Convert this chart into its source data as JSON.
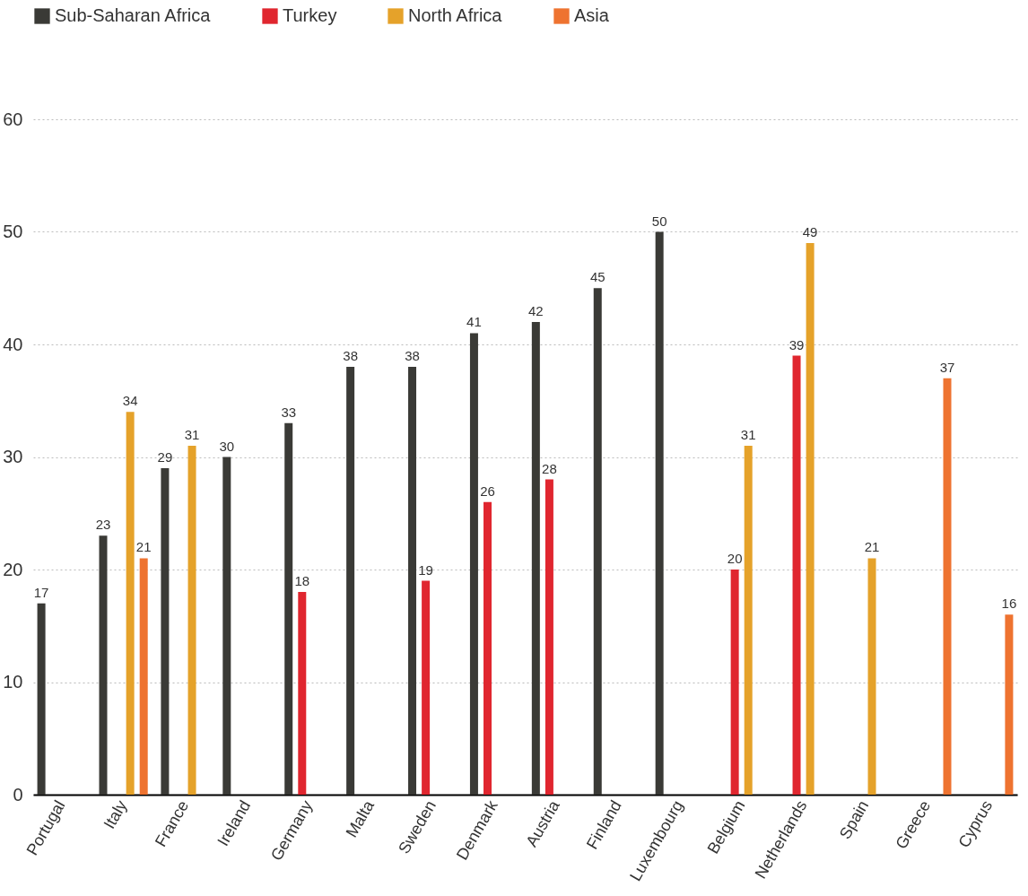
{
  "chart_data": {
    "type": "bar",
    "categories": [
      "Portugal",
      "Italy",
      "France",
      "Ireland",
      "Germany",
      "Malta",
      "Sweden",
      "Denmark",
      "Austria",
      "Finland",
      "Luxembourg",
      "Belgium",
      "Netherlands",
      "Spain",
      "Greece",
      "Cyprus"
    ],
    "series": [
      {
        "name": "Sub-Saharan Africa",
        "color": "#3a3a36",
        "values": [
          17,
          23,
          29,
          30,
          33,
          38,
          38,
          41,
          42,
          45,
          50,
          null,
          null,
          null,
          null,
          null
        ]
      },
      {
        "name": "Turkey",
        "color": "#e0262f",
        "values": [
          null,
          null,
          null,
          null,
          18,
          null,
          19,
          26,
          28,
          null,
          null,
          20,
          39,
          null,
          null,
          null
        ]
      },
      {
        "name": "North Africa",
        "color": "#e5a22a",
        "values": [
          null,
          34,
          31,
          null,
          null,
          null,
          null,
          null,
          null,
          null,
          null,
          31,
          49,
          21,
          null,
          null
        ]
      },
      {
        "name": "Asia",
        "color": "#ee7330",
        "values": [
          null,
          21,
          null,
          null,
          null,
          null,
          null,
          null,
          null,
          null,
          null,
          null,
          null,
          null,
          37,
          16
        ]
      }
    ],
    "ylim": [
      0,
      60
    ],
    "yticks": [
      0,
      10,
      20,
      30,
      40,
      50,
      60
    ],
    "grid": "y",
    "legend": "top left",
    "data_labels": true
  }
}
